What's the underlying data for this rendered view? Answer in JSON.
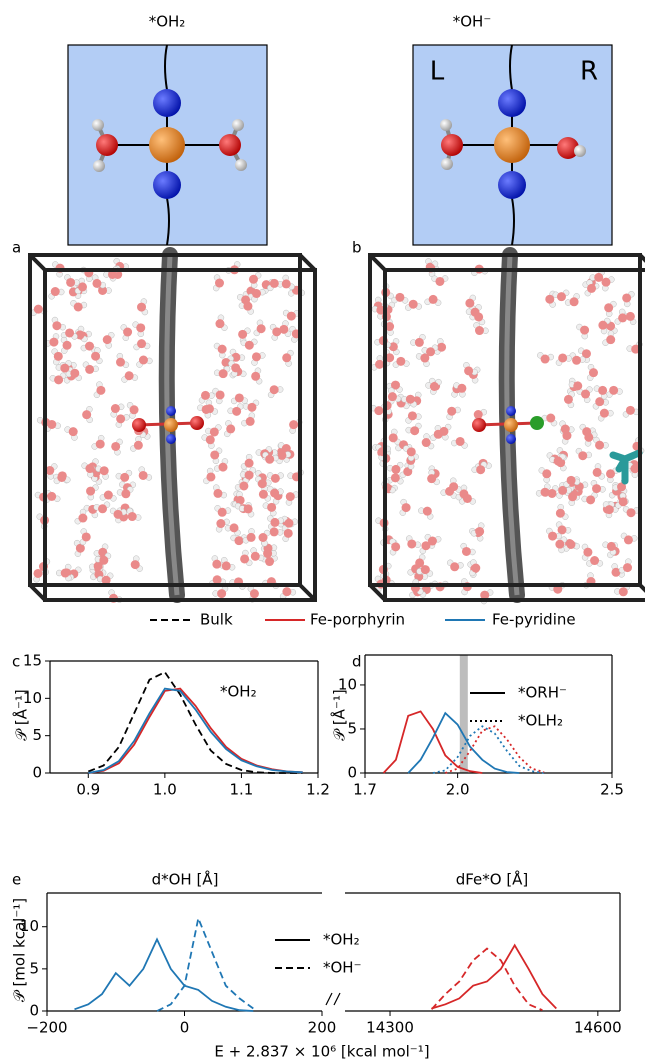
{
  "figure": {
    "top_titles": [
      "*OH₂",
      "*OH⁻"
    ],
    "side_labels": [
      "L",
      "R"
    ],
    "panel_labels": [
      "a",
      "b",
      "c",
      "d",
      "e"
    ]
  },
  "legend": [
    {
      "label": "Bulk",
      "color": "#000000",
      "style": "dashed"
    },
    {
      "label": "Fe-porphyrin",
      "color": "#d62728",
      "style": "solid"
    },
    {
      "label": "Fe-pyridine",
      "color": "#1f77b4",
      "style": "solid"
    }
  ],
  "chart_data": [
    {
      "type": "line",
      "xlabel": "d*OH [Å]",
      "ylabel": "𝒫 [Å⁻¹]",
      "annotation": "*OH₂",
      "xlim": [
        0.85,
        1.2
      ],
      "xticks": [
        0.9,
        {
          "value": 1,
          "label": "1.0"
        },
        1.1,
        1.2
      ],
      "ylim": [
        0,
        15
      ],
      "yticks": [
        0,
        5,
        10,
        15
      ],
      "x": [
        0.9,
        0.92,
        0.94,
        0.96,
        0.98,
        1.0,
        1.02,
        1.04,
        1.06,
        1.08,
        1.1,
        1.12,
        1.14,
        1.16,
        1.18
      ],
      "series": [
        {
          "color": "#000000",
          "style": "dashed",
          "values": [
            0.2,
            1,
            3.5,
            8,
            12.5,
            13.5,
            10.5,
            6.5,
            3,
            1.2,
            0.4,
            0.1,
            0,
            0,
            0
          ]
        },
        {
          "color": "#d62728",
          "style": "solid",
          "values": [
            0,
            0.3,
            1.3,
            3.8,
            7.5,
            11,
            11.3,
            9,
            6,
            3.5,
            1.9,
            1,
            0.5,
            0.2,
            0.1
          ]
        },
        {
          "color": "#1f77b4",
          "style": "solid",
          "values": [
            0,
            0.4,
            1.6,
            4.3,
            8,
            11.3,
            11,
            8.5,
            5.5,
            3.2,
            1.7,
            0.9,
            0.4,
            0.2,
            0.1
          ]
        }
      ]
    },
    {
      "type": "line",
      "xlabel": "dFe*O [Å]",
      "ylabel": "𝒫 [Å⁻¹]",
      "xlim": [
        1.7,
        2.5
      ],
      "xticks": [
        1.7,
        {
          "value": 2,
          "label": "2.0"
        },
        2.5
      ],
      "ylim": [
        0,
        13.4
      ],
      "yticks": [
        0,
        5,
        10
      ],
      "highlight_x": 2.02,
      "legend": [
        {
          "label": "*ORH⁻",
          "style": "solid"
        },
        {
          "label": "*OLH₂",
          "style": "dotted"
        }
      ],
      "x": [
        1.76,
        1.8,
        1.84,
        1.88,
        1.92,
        1.96,
        2.0,
        2.04,
        2.08,
        2.12,
        2.16,
        2.2,
        2.24,
        2.28
      ],
      "series": [
        {
          "color": "#d62728",
          "style": "solid",
          "values": [
            0,
            1.5,
            6.5,
            7,
            5,
            2,
            0.7,
            0.2,
            0,
            null,
            null,
            null,
            null,
            null
          ]
        },
        {
          "color": "#1f77b4",
          "style": "solid",
          "values": [
            null,
            null,
            0,
            1.5,
            4,
            6.8,
            5.5,
            3,
            1.5,
            0.5,
            0.1,
            0,
            null,
            null
          ]
        },
        {
          "color": "#1f77b4",
          "style": "dotted",
          "values": [
            null,
            null,
            null,
            null,
            0,
            0.3,
            1.8,
            4.2,
            5.3,
            4.5,
            2.5,
            0.8,
            0.2,
            0
          ]
        },
        {
          "color": "#d62728",
          "style": "dotted",
          "values": [
            null,
            null,
            null,
            null,
            null,
            0,
            0.5,
            2.5,
            4.8,
            5.3,
            3.8,
            1.8,
            0.5,
            0.1
          ]
        }
      ]
    },
    {
      "type": "line",
      "xlabel": "E + 2.837 × 10⁶ [kcal mol⁻¹]",
      "ylabel": "𝒫 [mol kcal⁻¹]",
      "xlim": [
        -200,
        200
      ],
      "xticks": [
        {
          "value": -200,
          "label": "−200"
        },
        0,
        200
      ],
      "ylim": [
        0,
        14
      ],
      "yticks": [
        0,
        5,
        10
      ],
      "legend": [
        {
          "label": "*OH₂",
          "style": "solid"
        },
        {
          "label": "*OH⁻",
          "style": "dashed"
        }
      ],
      "x": [
        -160,
        -140,
        -120,
        -100,
        -80,
        -60,
        -40,
        -20,
        0,
        20,
        40,
        60,
        80,
        100
      ],
      "series": [
        {
          "color": "#1f77b4",
          "style": "solid",
          "values": [
            0.2,
            0.8,
            2,
            4.5,
            3,
            5,
            8.5,
            5,
            3,
            2.5,
            1.2,
            0.5,
            0.1,
            0
          ]
        },
        {
          "color": "#1f77b4",
          "style": "dashed",
          "values": [
            null,
            null,
            null,
            null,
            null,
            null,
            0,
            0.8,
            3,
            11,
            7,
            3,
            1.5,
            0.3
          ]
        }
      ]
    },
    {
      "type": "line",
      "xlim": [
        14235,
        14632
      ],
      "xticks": [
        14300,
        14600
      ],
      "ylim": [
        0,
        14
      ],
      "x": [
        14360,
        14380,
        14400,
        14420,
        14440,
        14460,
        14480,
        14500,
        14520,
        14540
      ],
      "series": [
        {
          "color": "#d62728",
          "style": "solid",
          "values": [
            0.3,
            0.8,
            1.5,
            3,
            3.5,
            5,
            7.8,
            5,
            2,
            0.3
          ]
        },
        {
          "color": "#d62728",
          "style": "dashed",
          "values": [
            0.2,
            2,
            3.5,
            6,
            7.4,
            6,
            3,
            0.8,
            0.1,
            null
          ]
        }
      ]
    }
  ]
}
